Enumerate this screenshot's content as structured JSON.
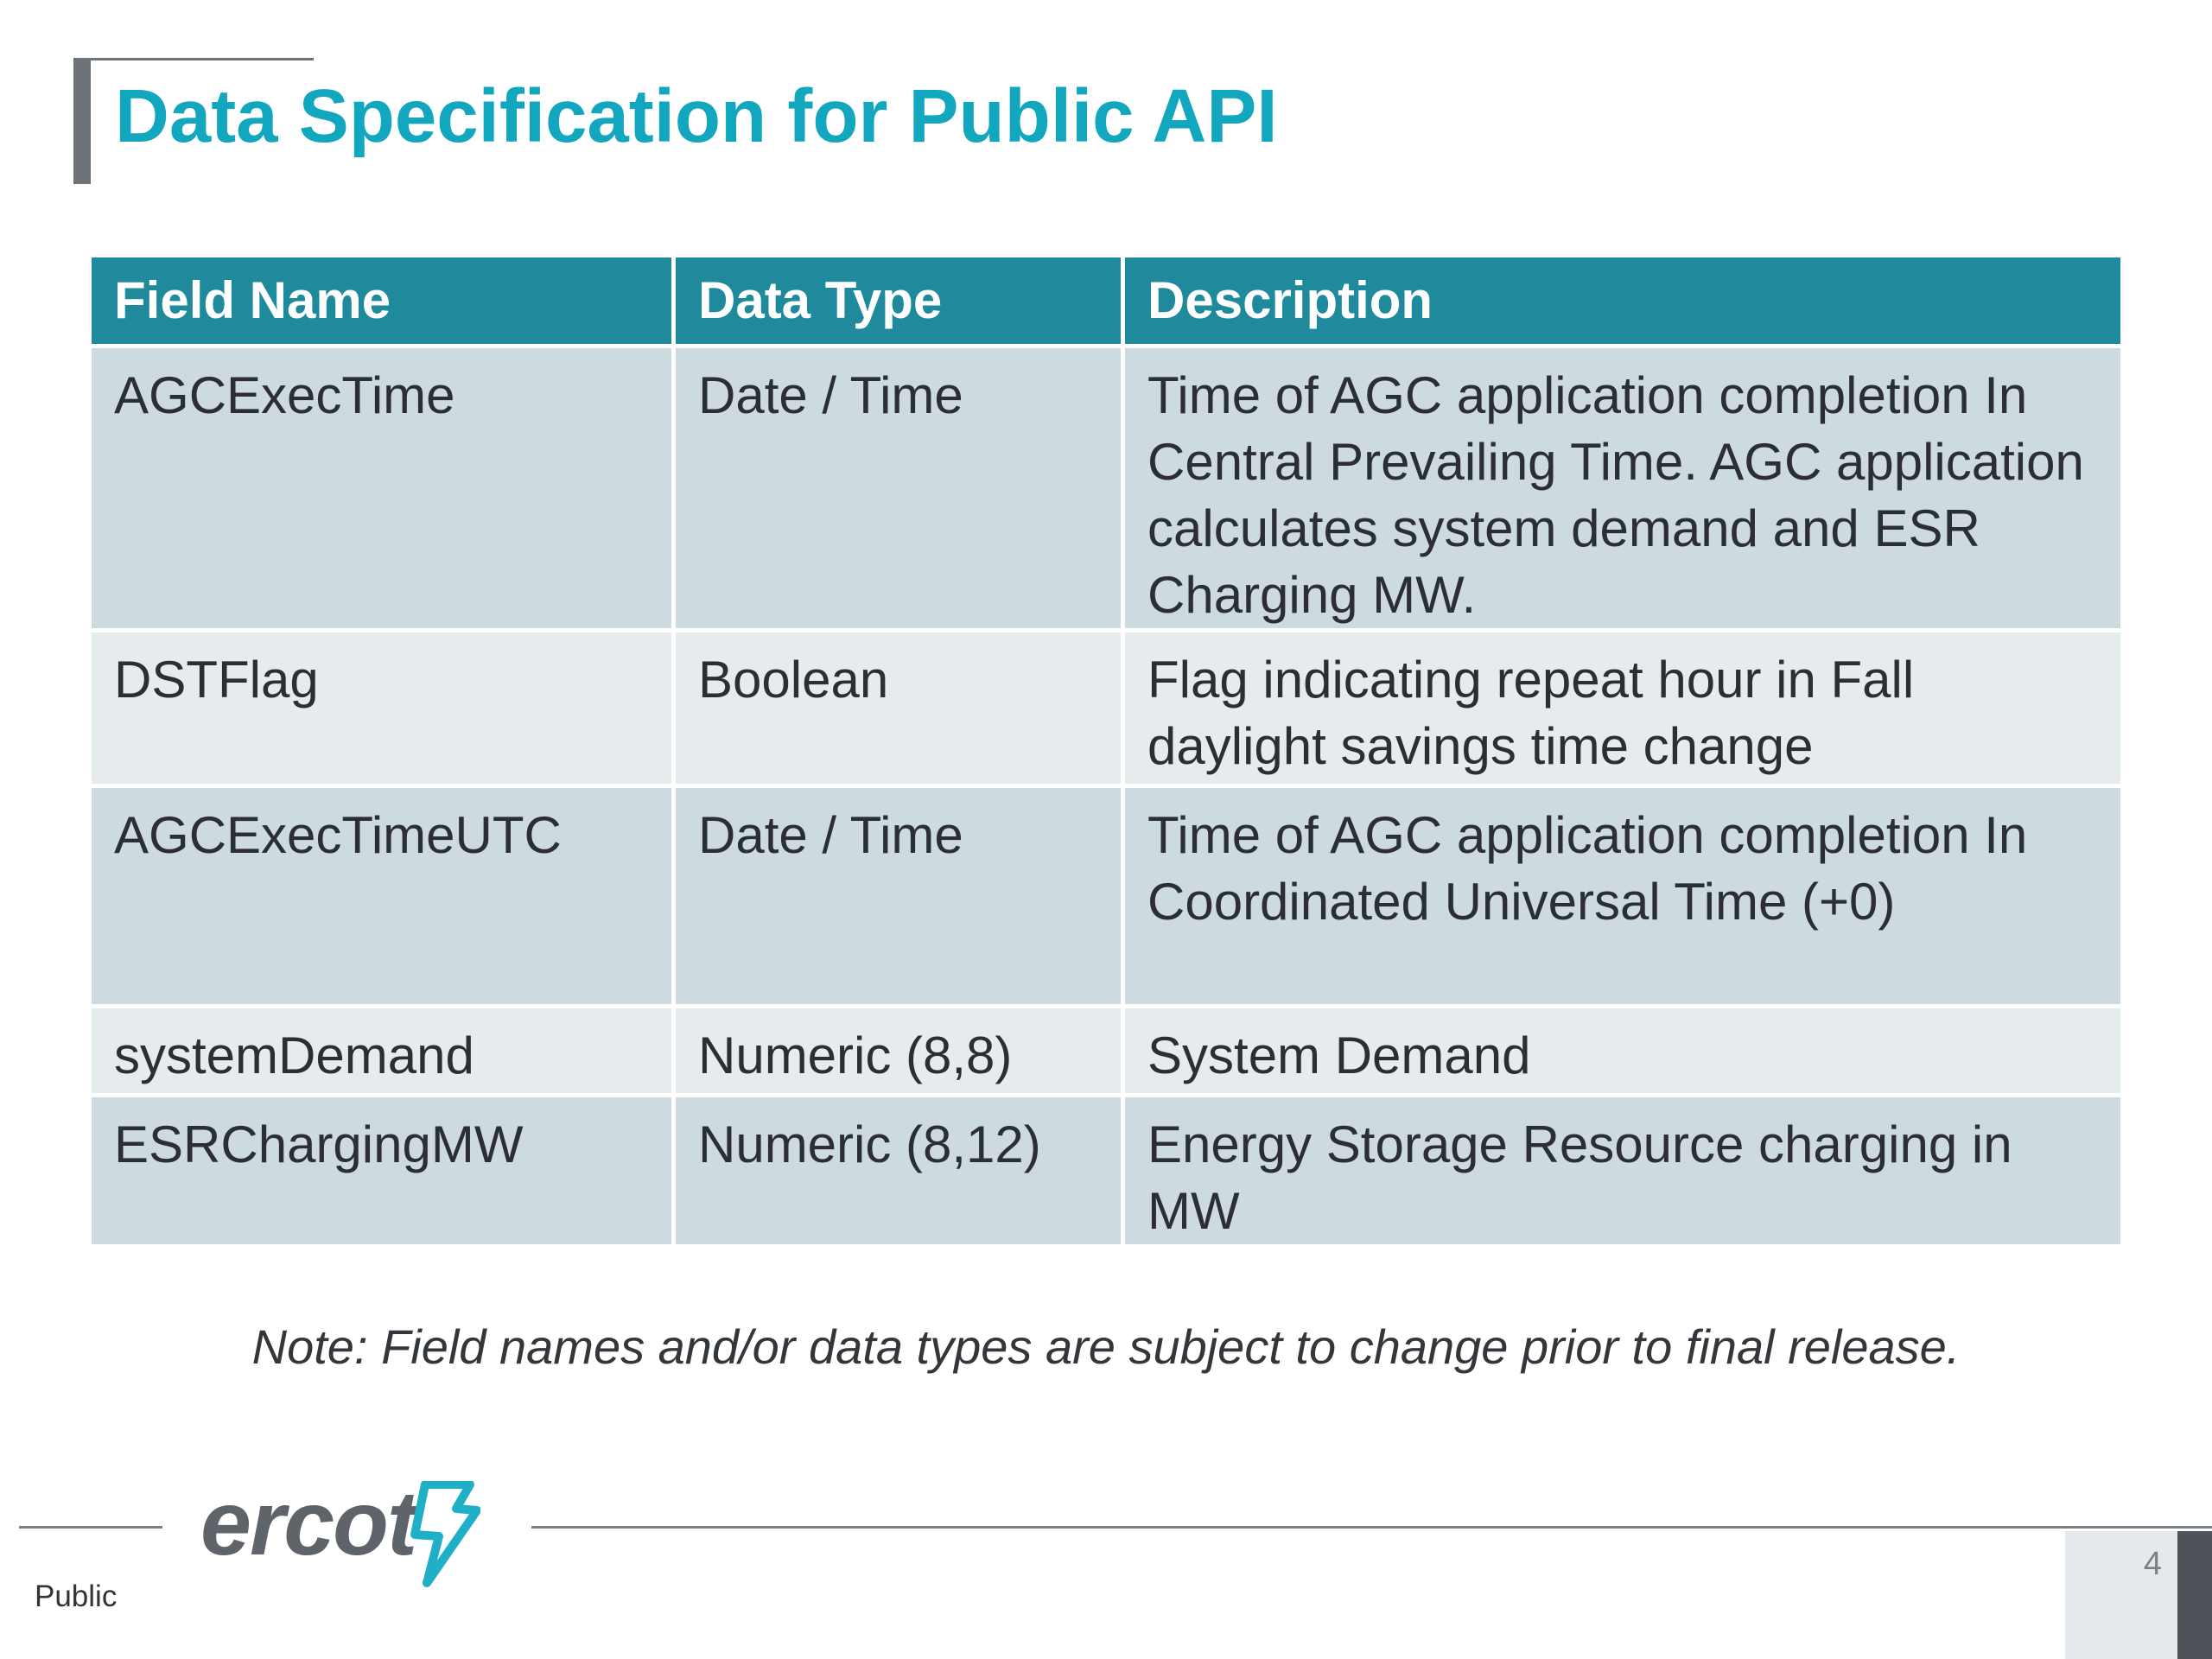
{
  "slide": {
    "title": "Data Specification for Public API",
    "note": "Note: Field names and/or data types are subject to change prior to final release."
  },
  "table": {
    "headers": [
      "Field Name",
      "Data Type",
      "Description"
    ],
    "rows": [
      {
        "field": "AGCExecTime",
        "type": "Date / Time",
        "description": "Time of AGC application completion In Central Prevailing Time. AGC application calculates system demand and ESR Charging MW."
      },
      {
        "field": "DSTFlag",
        "type": "Boolean",
        "description": "Flag indicating repeat hour in Fall daylight savings time change"
      },
      {
        "field": "AGCExecTimeUTC",
        "type": "Date / Time",
        "description": "Time of AGC application completion In Coordinated Universal Time (+0)"
      },
      {
        "field": "systemDemand",
        "type": "Numeric (8,8)",
        "description": "System Demand"
      },
      {
        "field": "ESRChargingMW",
        "type": "Numeric (8,12)",
        "description": "Energy Storage Resource charging in MW"
      }
    ]
  },
  "footer": {
    "logo_text": "ercot",
    "classification": "Public",
    "page_number": "4"
  },
  "icons": {
    "logo_mark": "lightning-bolt-icon"
  },
  "colors": {
    "title": "#12a7be",
    "header_bg": "#1f8a9b",
    "row_dark": "#cddadf",
    "row_light": "#e6ecee",
    "logo_bolt": "#1fb0c8"
  }
}
